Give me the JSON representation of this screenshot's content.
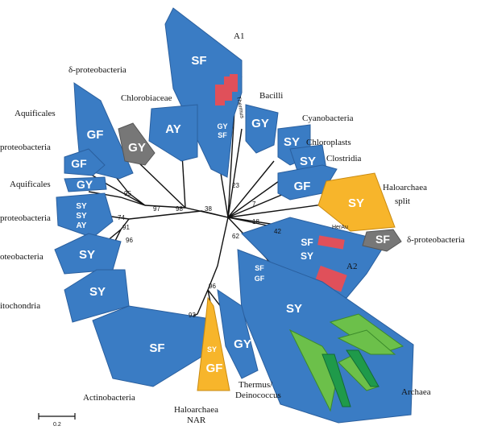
{
  "taxa": {
    "a1": "A1",
    "delta_top": "δ-proteobacteria",
    "chlorobiaceae": "Chlorobiaceae",
    "bacilli": "Bacilli",
    "cyanobacteria": "Cyanobacteria",
    "chloroplasts": "Chloroplasts",
    "clostridia": "Clostridia",
    "haloarchaea_split_1": "Haloarchaea",
    "haloarchaea_split_2": "split",
    "aquificales_top": "Aquificales",
    "proteobacteria_1": "proteobacteria",
    "aquificales_mid": "Aquificales",
    "proteobacteria_2": "proteobacteria",
    "oteobacteria": "oteobacteria",
    "itochondria": "itochondria",
    "delta_right": "δ-proteobacteria",
    "a2": "A2",
    "archaea": "Archaea",
    "actinobacteria": "Actinobacteria",
    "haloarchaea_nar_1": "Haloarchaea",
    "haloarchaea_nar_2": "NAR",
    "thermus_1": "Thermus/",
    "thermus_2": "Deinococcus",
    "thermus_small": "Thermus",
    "heraau": "HerAu"
  },
  "clades": {
    "a1_sf": "SF",
    "a1_gy": "GY",
    "a1_sf2": "SF",
    "delta_gf": "GF",
    "chlorob_ay": "AY",
    "gray_gy": "GY",
    "bacilli_gy": "GY",
    "cyano_sy": "SY",
    "chloro_sy": "SY",
    "clostr_gf": "GF",
    "halo_sy": "SY",
    "aquif_gf": "GF",
    "aquif_gy": "GY",
    "prot_sy": "SY",
    "prot_sy2": "SY",
    "prot_ay": "AY",
    "oteo_sy": "SY",
    "mito_sy": "SY",
    "a2_sf": "SF",
    "a2_sy": "SY",
    "gray_sf": "SF",
    "arch_sf": "SF",
    "arch_gf": "GF",
    "arch_sy": "SY",
    "actino_sf": "SF",
    "nar_sy": "SY",
    "nar_gf": "GF",
    "thermus_gy": "GY"
  },
  "bootstrap": {
    "b95": "95",
    "b97": "97",
    "b98": "98",
    "b38": "38",
    "b23": "23",
    "b7": "7",
    "b18": "18",
    "b42": "42",
    "b74": "74",
    "b91": "91",
    "b96a": "96",
    "b62": "62",
    "b96b": "96",
    "b93": "93"
  },
  "scale": {
    "label": "0.2"
  },
  "colors": {
    "clade_blue": "#3a7cc4",
    "clade_orange": "#f7b52b",
    "clade_gray": "#777777",
    "clade_green": "#6cc04a",
    "clade_dark_green": "#1f9a4a",
    "highlight_red": "#e0505a"
  }
}
